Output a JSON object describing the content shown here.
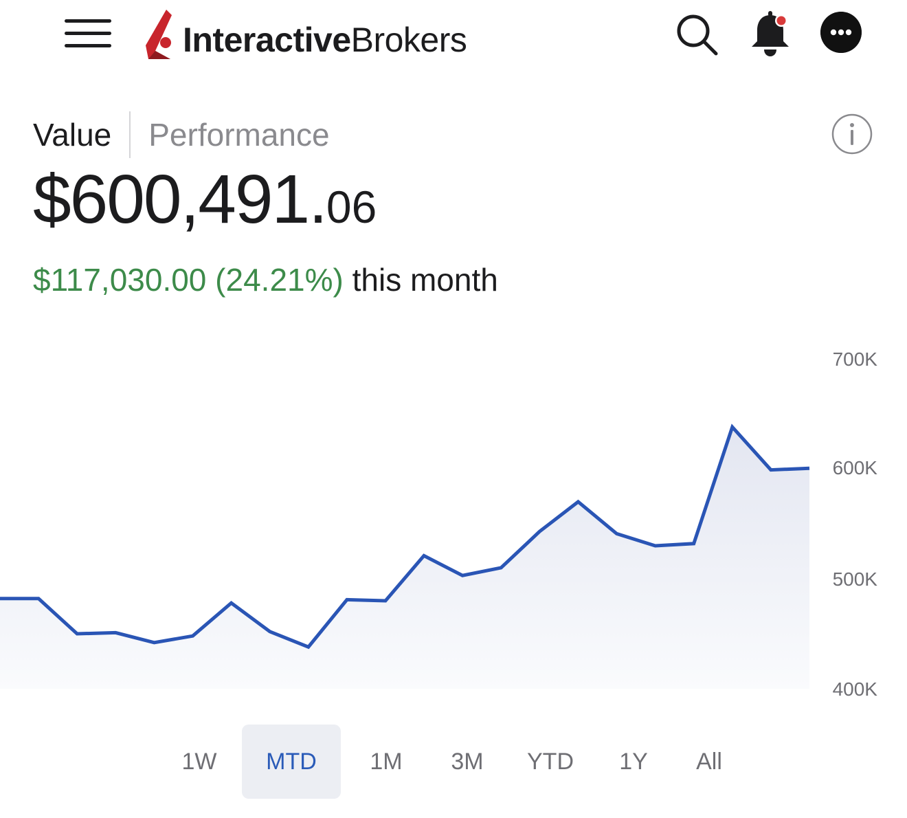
{
  "header": {
    "brand_bold": "Interactive",
    "brand_light": "Brokers",
    "icons": [
      "menu-icon",
      "search-icon",
      "bell-icon",
      "more-icon"
    ],
    "notification_dot_color": "#d83a3a"
  },
  "tabs": [
    {
      "label": "Value",
      "active": true
    },
    {
      "label": "Performance",
      "active": false
    }
  ],
  "account": {
    "value_main": "$600,491.",
    "value_cents": "06",
    "change_amount": "$117,030.00 (24.21%)",
    "change_period": "this month",
    "gain_color": "#3d8b4a"
  },
  "chart_data": {
    "type": "area",
    "y_ticks": [
      "700K",
      "600K",
      "500K",
      "400K"
    ],
    "ylim": [
      400000,
      700000
    ],
    "line_color": "#2a55b5",
    "values": [
      482000,
      482000,
      450000,
      451000,
      442000,
      448000,
      478000,
      452000,
      438000,
      481000,
      480000,
      521000,
      503000,
      510000,
      543000,
      570000,
      541000,
      530000,
      532000,
      638000,
      599000,
      600491
    ]
  },
  "ranges": [
    {
      "label": "1W",
      "active": false
    },
    {
      "label": "MTD",
      "active": true
    },
    {
      "label": "1M",
      "active": false
    },
    {
      "label": "3M",
      "active": false
    },
    {
      "label": "YTD",
      "active": false
    },
    {
      "label": "1Y",
      "active": false
    },
    {
      "label": "All",
      "active": false
    }
  ]
}
